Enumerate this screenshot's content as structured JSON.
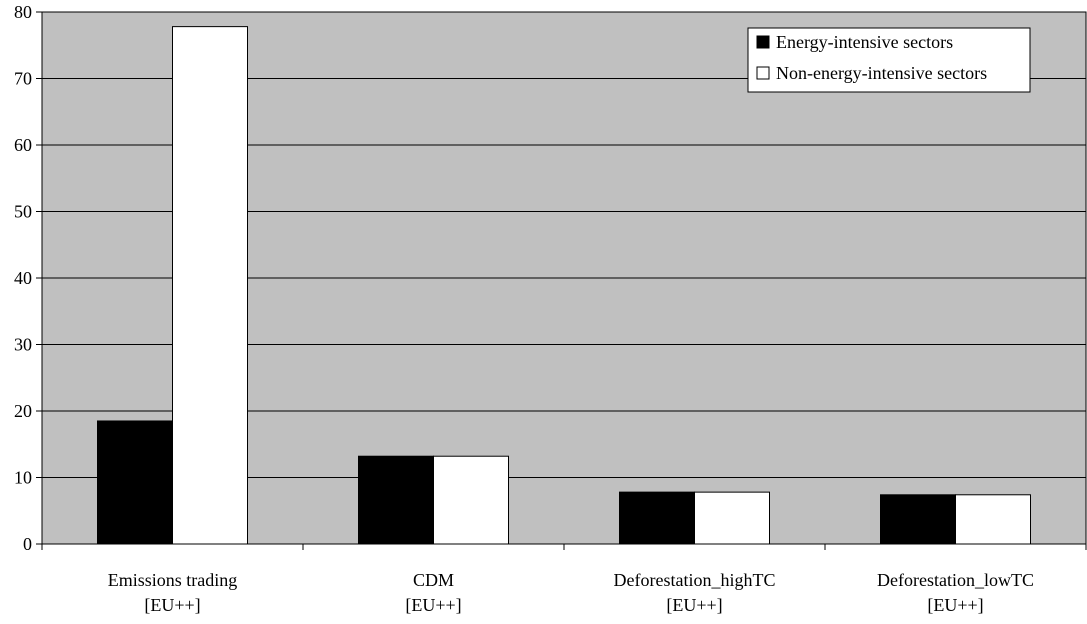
{
  "chart_data": {
    "type": "bar",
    "categories": [
      [
        "Emissions trading",
        "[EU++]"
      ],
      [
        "CDM",
        "[EU++]"
      ],
      [
        "Deforestation_highTC",
        "[EU++]"
      ],
      [
        "Deforestation_lowTC",
        "[EU++]"
      ]
    ],
    "series": [
      {
        "name": "Energy-intensive sectors",
        "values": [
          18.5,
          13.2,
          7.8,
          7.4
        ],
        "color": "#000000"
      },
      {
        "name": "Non-energy-intensive sectors",
        "values": [
          77.8,
          13.2,
          7.8,
          7.4
        ],
        "color": "#ffffff"
      }
    ],
    "ylim": [
      0,
      80
    ],
    "yticks": [
      "0",
      "10",
      "20",
      "30",
      "40",
      "50",
      "60",
      "70",
      "80"
    ],
    "grid": true,
    "legend": "top-right",
    "plot_background": "#c0c0c0"
  }
}
